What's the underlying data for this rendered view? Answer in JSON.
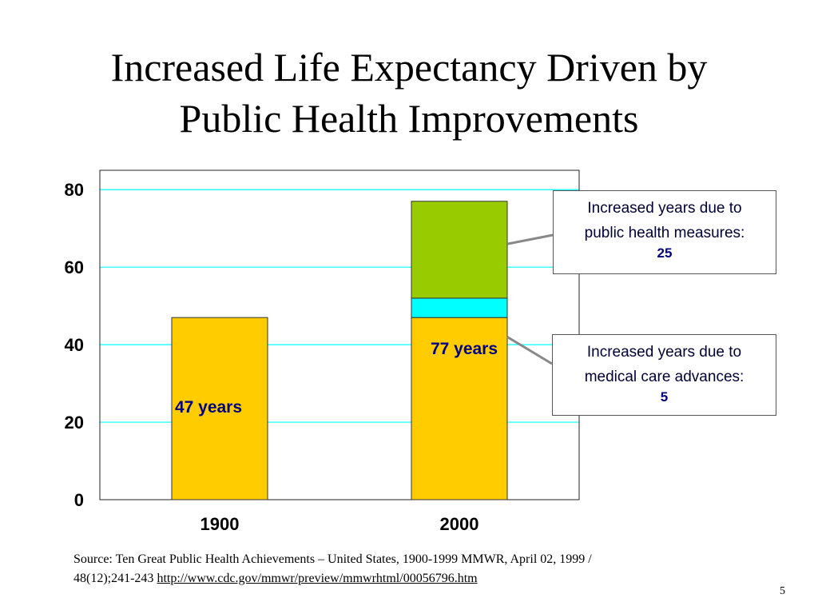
{
  "slide": {
    "title_line1": "Increased Life Expectancy Driven by",
    "title_line2": "Public Health Improvements",
    "source_line1": "Source: Ten Great Public Health Achievements – United States, 1900-1999  MMWR, April 02, 1999 /",
    "source_line2": "48(12);241-243 ",
    "source_link": "http://www.cdc.gov/mmwr/preview/mmwrhtml/00056796.htm",
    "slide_number": "5"
  },
  "callouts": {
    "public_health": {
      "line1": "Increased years due to",
      "line2": "public health measures:",
      "value": "25"
    },
    "medical_care": {
      "line1": "Increased years due to",
      "line2": "medical care advances:",
      "value": "5"
    }
  },
  "chart_data": {
    "type": "bar",
    "stacked": true,
    "categories": [
      "1900",
      "2000"
    ],
    "series": [
      {
        "values": [
          47,
          47
        ],
        "color": "#FFCC00"
      },
      {
        "values": [
          0,
          5
        ],
        "color": "#00FFFF"
      },
      {
        "values": [
          0,
          25
        ],
        "color": "#99CC00"
      }
    ],
    "data_labels": [
      "47 years",
      "77 years"
    ],
    "ylim": [
      0,
      85
    ],
    "yticks": [
      0,
      20,
      40,
      60,
      80
    ],
    "grid": true,
    "grid_color": "#00FFFF"
  }
}
